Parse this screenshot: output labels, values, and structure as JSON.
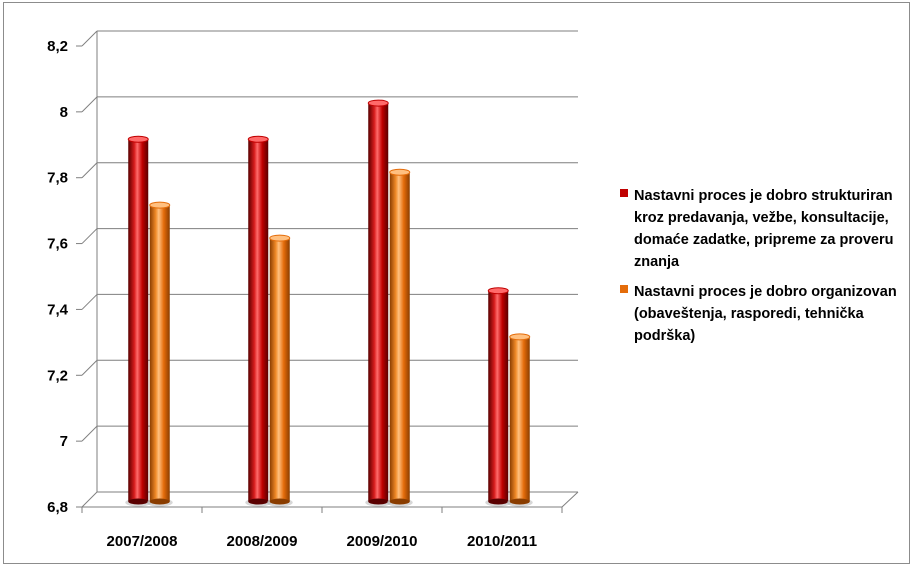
{
  "chart_data": {
    "type": "bar",
    "categories": [
      "2007/2008",
      "2008/2009",
      "2009/2010",
      "2010/2011"
    ],
    "series": [
      {
        "name": "Nastavni proces je dobro strukturiran kroz predavanja, vežbe, konsultacije, domaće zadatke, pripreme za proveru znanja",
        "color": "#c00000",
        "values": [
          7.9,
          7.9,
          8.01,
          7.44
        ]
      },
      {
        "name": "Nastavni proces je dobro organizovan (obaveštenja, rasporedi, tehnička podrška)",
        "color": "#e46c0a",
        "values": [
          7.7,
          7.6,
          7.8,
          7.3
        ]
      }
    ],
    "yticks": [
      "6,8",
      "7",
      "7,2",
      "7,4",
      "7,6",
      "7,8",
      "8",
      "8,2"
    ],
    "ylim": [
      6.8,
      8.2
    ],
    "grid": true,
    "legend_position": "right",
    "title": "",
    "xlabel": "",
    "ylabel": ""
  }
}
